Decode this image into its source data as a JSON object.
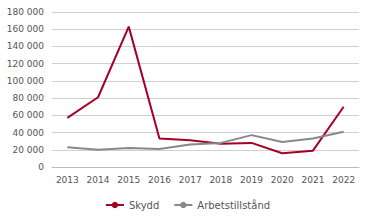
{
  "chart_data": {
    "type": "line",
    "x": [
      2013,
      2014,
      2015,
      2016,
      2017,
      2018,
      2019,
      2020,
      2021,
      2022
    ],
    "xlim": [
      2012.5,
      2022.5
    ],
    "xticks": [
      2013,
      2014,
      2015,
      2016,
      2017,
      2018,
      2019,
      2020,
      2021,
      2022
    ],
    "series": [
      {
        "name": "Skydd",
        "color": "#a50026",
        "values": [
          57000,
          81000,
          163000,
          33000,
          31000,
          27000,
          28000,
          16000,
          19000,
          70000
        ]
      },
      {
        "name": "Arbetstillstånd",
        "color": "#888888",
        "values": [
          23000,
          20000,
          22000,
          21000,
          26000,
          28000,
          37000,
          29000,
          33000,
          41000
        ]
      }
    ],
    "ylim": [
      0,
      180000
    ],
    "yticks": [
      0,
      {
        "value": 20000,
        "label": "20 000"
      },
      {
        "value": 40000,
        "label": "40 000"
      },
      {
        "value": 60000,
        "label": "60 000"
      },
      {
        "value": 80000,
        "label": "80 000"
      },
      {
        "value": 100000,
        "label": "100 000"
      },
      {
        "value": 120000,
        "label": "120 000"
      },
      {
        "value": 140000,
        "label": "140 000"
      },
      {
        "value": 160000,
        "label": "160 000"
      },
      {
        "value": 180000,
        "label": "180 000"
      }
    ],
    "grid": true,
    "legend": "bottom"
  }
}
